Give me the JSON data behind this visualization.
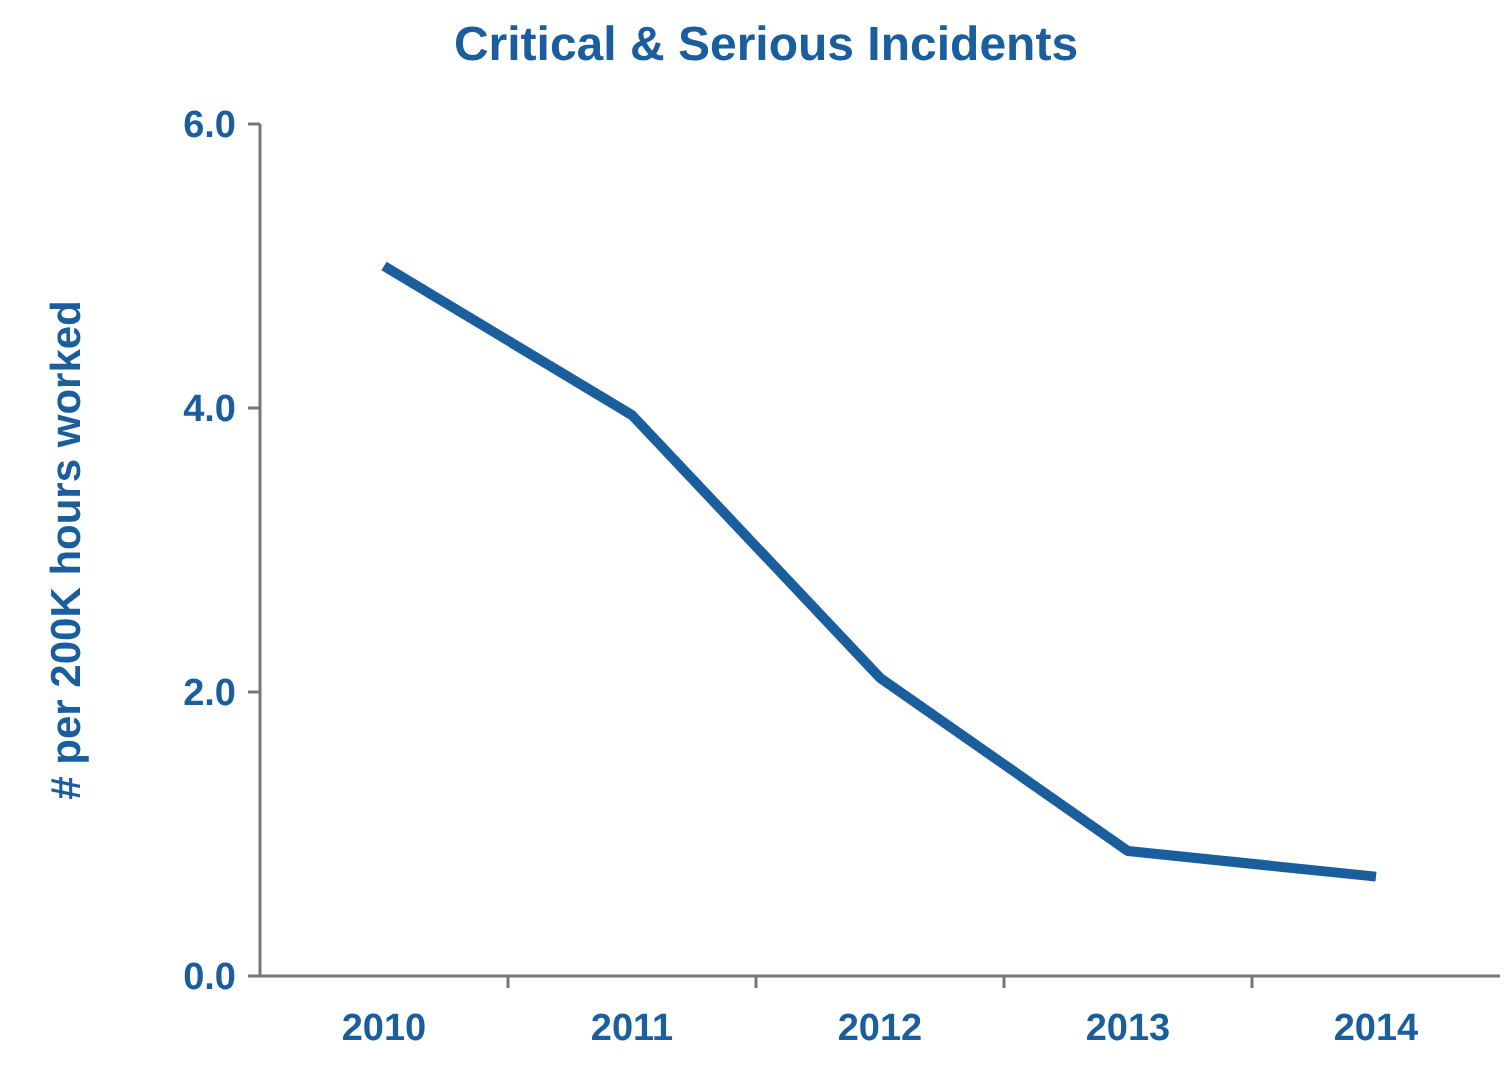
{
  "chart_data": {
    "type": "line",
    "title": "Critical & Serious Incidents",
    "ylabel": "# per 200K hours worked",
    "categories": [
      "2010",
      "2011",
      "2012",
      "2013",
      "2014"
    ],
    "series": [
      {
        "color": "#1b5e9e",
        "values": [
          5.0,
          3.95,
          2.1,
          0.88,
          0.7
        ]
      }
    ],
    "ylim": [
      0,
      6
    ],
    "yticks": [
      {
        "value": 0,
        "label": "0.0"
      },
      {
        "value": 2,
        "label": "2.0"
      },
      {
        "value": 4,
        "label": "4.0"
      },
      {
        "value": 6,
        "label": "6.0"
      }
    ],
    "grid": false,
    "marker": "none",
    "line_style": "solid"
  }
}
